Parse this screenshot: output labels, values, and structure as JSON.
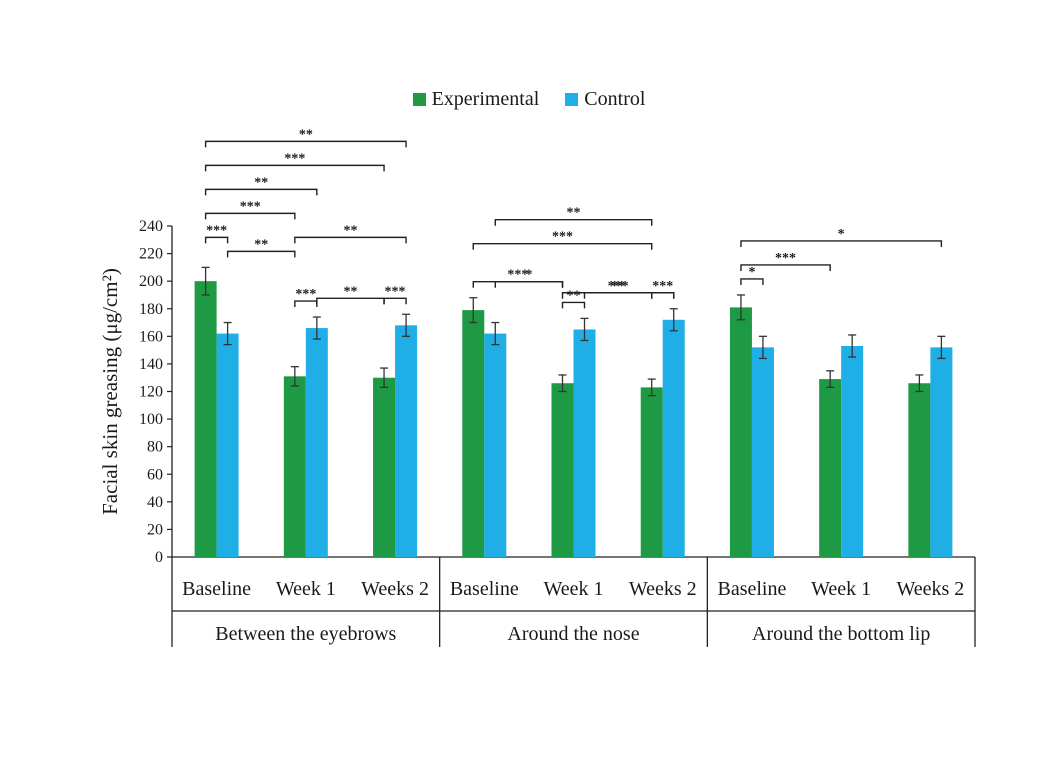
{
  "chart_data": {
    "type": "bar",
    "ylabel": "Facial skin greasing (μg/cm²)",
    "ylim": [
      0,
      240
    ],
    "yticks": [
      0,
      20,
      40,
      60,
      80,
      100,
      120,
      140,
      160,
      180,
      200,
      220,
      240
    ],
    "legend_position": "top-center",
    "colors": {
      "Experimental": "#1e9a44",
      "Control": "#20aee6"
    },
    "groups": [
      {
        "name": "Between the eyebrows",
        "categories": [
          "Baseline",
          "Week 1",
          "Weeks 2"
        ]
      },
      {
        "name": "Around the nose",
        "categories": [
          "Baseline",
          "Week 1",
          "Weeks 2"
        ]
      },
      {
        "name": "Around the bottom lip",
        "categories": [
          "Baseline",
          "Week 1",
          "Weeks 2"
        ]
      }
    ],
    "series": [
      {
        "name": "Experimental",
        "values": [
          200,
          131,
          130,
          179,
          126,
          123,
          181,
          129,
          126
        ],
        "errors": [
          10,
          7,
          7,
          9,
          6,
          6,
          9,
          6,
          6
        ]
      },
      {
        "name": "Control",
        "values": [
          162,
          166,
          168,
          162,
          165,
          172,
          152,
          153,
          152
        ],
        "errors": [
          8,
          8,
          8,
          8,
          8,
          8,
          8,
          8,
          8
        ]
      }
    ],
    "significance": [
      {
        "group": 0,
        "from": [
          0,
          0
        ],
        "to": [
          0,
          1
        ],
        "label": "***",
        "level": 0
      },
      {
        "group": 0,
        "from": [
          0,
          0
        ],
        "to": [
          1,
          0
        ],
        "label": "***",
        "level": 1
      },
      {
        "group": 0,
        "from": [
          0,
          0
        ],
        "to": [
          1,
          1
        ],
        "label": "**",
        "level": 2
      },
      {
        "group": 0,
        "from": [
          0,
          0
        ],
        "to": [
          2,
          0
        ],
        "label": "***",
        "level": 3
      },
      {
        "group": 0,
        "from": [
          0,
          0
        ],
        "to": [
          2,
          1
        ],
        "label": "**",
        "level": 4
      },
      {
        "group": 0,
        "from": [
          0,
          1
        ],
        "to": [
          1,
          0
        ],
        "label": "**",
        "level": -2
      },
      {
        "group": 0,
        "from": [
          1,
          0
        ],
        "to": [
          1,
          1
        ],
        "label": "***",
        "level": -1
      },
      {
        "group": 0,
        "from": [
          1,
          0
        ],
        "to": [
          2,
          1
        ],
        "label": "**",
        "level": 0
      },
      {
        "group": 0,
        "from": [
          1,
          1
        ],
        "to": [
          2,
          0
        ],
        "label": "**",
        "level": -1.5
      },
      {
        "group": 0,
        "from": [
          2,
          0
        ],
        "to": [
          2,
          1
        ],
        "label": "***",
        "level": -1
      },
      {
        "group": 1,
        "from": [
          0,
          0
        ],
        "to": [
          1,
          0
        ],
        "label": "***",
        "level": -0.5
      },
      {
        "group": 1,
        "from": [
          0,
          1
        ],
        "to": [
          1,
          0
        ],
        "label": "*",
        "level": -1.5
      },
      {
        "group": 1,
        "from": [
          0,
          0
        ],
        "to": [
          2,
          0
        ],
        "label": "***",
        "level": 1
      },
      {
        "group": 1,
        "from": [
          0,
          1
        ],
        "to": [
          2,
          0
        ],
        "label": "**",
        "level": 2
      },
      {
        "group": 1,
        "from": [
          1,
          0
        ],
        "to": [
          1,
          1
        ],
        "label": "**",
        "level": -2.5
      },
      {
        "group": 1,
        "from": [
          1,
          0
        ],
        "to": [
          2,
          1
        ],
        "label": "***",
        "level": -0.1
      },
      {
        "group": 1,
        "from": [
          1,
          1
        ],
        "to": [
          2,
          0
        ],
        "label": "**",
        "level": -2.5
      },
      {
        "group": 1,
        "from": [
          2,
          0
        ],
        "to": [
          2,
          1
        ],
        "label": "***",
        "level": -1.8
      },
      {
        "group": 2,
        "from": [
          0,
          0
        ],
        "to": [
          0,
          1
        ],
        "label": "*",
        "level": -1.2
      },
      {
        "group": 2,
        "from": [
          0,
          0
        ],
        "to": [
          1,
          0
        ],
        "label": "***",
        "level": 0
      },
      {
        "group": 2,
        "from": [
          0,
          0
        ],
        "to": [
          2,
          1
        ],
        "label": "*",
        "level": 1
      }
    ]
  }
}
